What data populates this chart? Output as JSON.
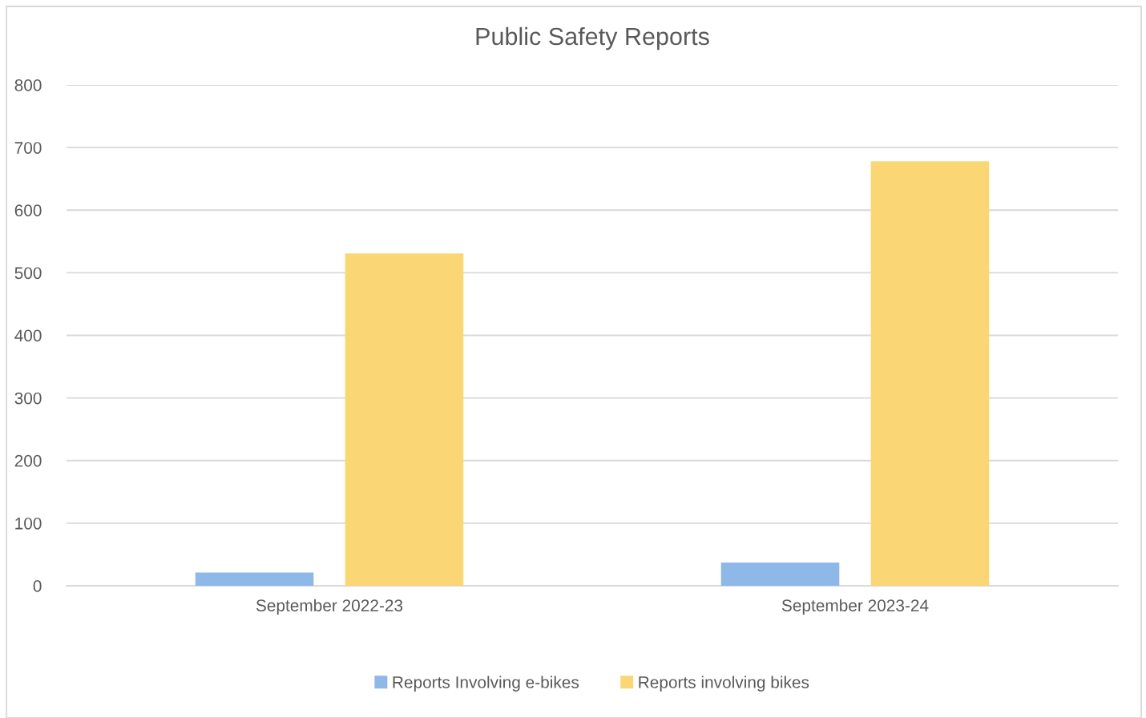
{
  "chart_data": {
    "type": "bar",
    "title": "Public Safety Reports",
    "categories": [
      "September 2022-23",
      "September 2023-24"
    ],
    "series": [
      {
        "name": "Reports Involving e-bikes",
        "color": "#8db8e8",
        "values": [
          21,
          37
        ]
      },
      {
        "name": "Reports involving bikes",
        "color": "#fad774",
        "values": [
          531,
          678
        ]
      }
    ],
    "ylim": [
      0,
      800
    ],
    "yticks": [
      0,
      100,
      200,
      300,
      400,
      500,
      600,
      700,
      800
    ],
    "grid": "y",
    "legend": "bottom"
  }
}
